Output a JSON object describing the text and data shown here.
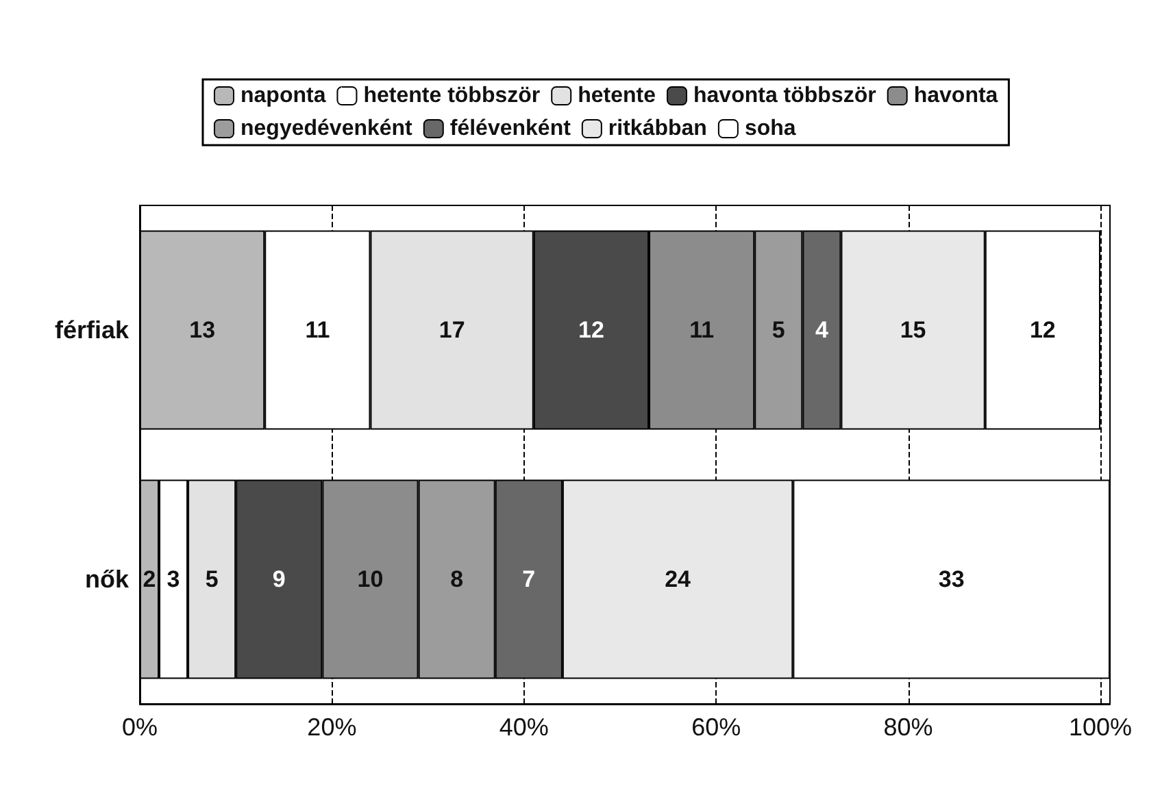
{
  "chart_data": {
    "type": "bar",
    "orientation": "horizontal",
    "stacked": true,
    "data_labels": true,
    "grid": "x",
    "legend": "top",
    "categories": [
      "férfiak",
      "nők"
    ],
    "series": [
      {
        "name": "naponta",
        "color": "#b8b8b8",
        "values": [
          13,
          2
        ]
      },
      {
        "name": "hetente többször",
        "color": "#ffffff",
        "values": [
          11,
          3
        ]
      },
      {
        "name": "hetente",
        "color": "#e2e2e2",
        "values": [
          17,
          5
        ]
      },
      {
        "name": "havonta többször",
        "color": "#4a4a4a",
        "values": [
          12,
          9
        ]
      },
      {
        "name": "havonta",
        "color": "#8c8c8c",
        "values": [
          11,
          10
        ]
      },
      {
        "name": "negyedévenként",
        "color": "#9c9c9c",
        "values": [
          5,
          8
        ]
      },
      {
        "name": "félévenként",
        "color": "#686868",
        "values": [
          4,
          7
        ]
      },
      {
        "name": "ritkábban",
        "color": "#e8e8e8",
        "values": [
          15,
          24
        ]
      },
      {
        "name": "soha",
        "color": "#ffffff",
        "values": [
          12,
          33
        ]
      }
    ],
    "xlim": [
      0,
      101
    ],
    "xticks": [
      {
        "value": 0,
        "label": "0%"
      },
      {
        "value": 20,
        "label": "20%"
      },
      {
        "value": 40,
        "label": "40%"
      },
      {
        "value": 60,
        "label": "60%"
      },
      {
        "value": 80,
        "label": "80%"
      },
      {
        "value": 100,
        "label": "100%"
      }
    ]
  }
}
